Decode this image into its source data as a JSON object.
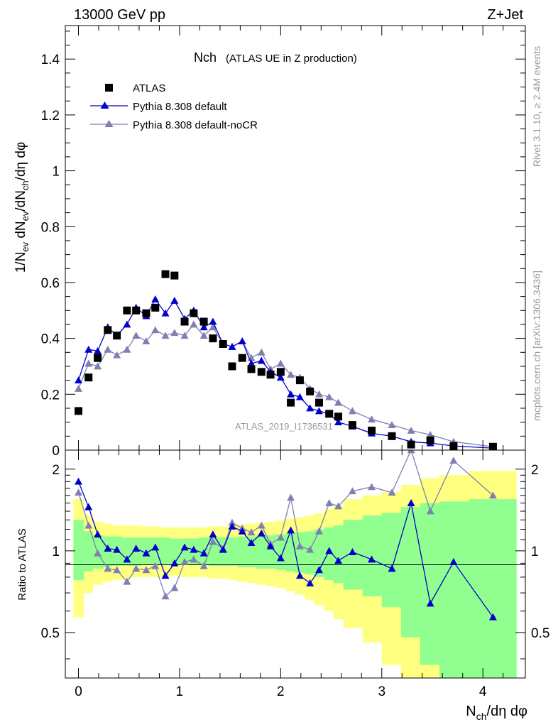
{
  "header": {
    "left": "13000 GeV pp",
    "right": "Z+Jet"
  },
  "side_labels": {
    "rivet": "Rivet 3.1.10, ≥ 2.4M events",
    "mcplots": "mcplots.cern.ch [arXiv:1306.3436]"
  },
  "colors": {
    "atlas": "#000000",
    "default": "#0000cc",
    "nocr": "#7f7fb2",
    "band_outer": "#ffff80",
    "band_inner": "#90ff90"
  },
  "chart_data": [
    {
      "type": "scatter",
      "title": "Nch",
      "subtitle": "(ATLAS UE in Z production)",
      "watermark": "ATLAS_2019_I1736531",
      "ylabel": "1/N_ev dN_ev/dN_ch/dη dφ",
      "xlabel": "N_ch/dη dφ",
      "xlim": [
        -0.13,
        4.42
      ],
      "ylim": [
        0,
        1.52
      ],
      "yticks": [
        "0",
        "0.2",
        "0.4",
        "0.6",
        "0.8",
        "1",
        "1.2",
        "1.4"
      ],
      "legend_position": "top-left",
      "series": [
        {
          "name": "ATLAS",
          "marker": "square",
          "x": [
            0.0,
            0.1,
            0.19,
            0.29,
            0.38,
            0.48,
            0.57,
            0.67,
            0.76,
            0.86,
            0.95,
            1.05,
            1.14,
            1.24,
            1.33,
            1.43,
            1.52,
            1.62,
            1.71,
            1.81,
            1.9,
            2.0,
            2.1,
            2.19,
            2.29,
            2.38,
            2.48,
            2.57,
            2.71,
            2.9,
            3.1,
            3.29,
            3.48,
            3.71,
            4.1
          ],
          "values": [
            0.14,
            0.26,
            0.33,
            0.43,
            0.41,
            0.5,
            0.5,
            0.49,
            0.51,
            0.63,
            0.625,
            0.46,
            0.49,
            0.46,
            0.4,
            0.38,
            0.3,
            0.33,
            0.29,
            0.28,
            0.27,
            0.28,
            0.17,
            0.25,
            0.21,
            0.17,
            0.13,
            0.12,
            0.09,
            0.07,
            0.05,
            0.02,
            0.035,
            0.015,
            0.012
          ]
        },
        {
          "name": "Pythia 8.308 default",
          "marker": "triangle",
          "x": [
            0.0,
            0.1,
            0.19,
            0.29,
            0.38,
            0.48,
            0.57,
            0.67,
            0.76,
            0.86,
            0.95,
            1.05,
            1.14,
            1.24,
            1.33,
            1.43,
            1.52,
            1.62,
            1.71,
            1.81,
            1.9,
            2.0,
            2.1,
            2.19,
            2.29,
            2.38,
            2.48,
            2.57,
            2.71,
            2.9,
            3.1,
            3.29,
            3.48,
            3.71,
            4.1
          ],
          "values": [
            0.25,
            0.36,
            0.355,
            0.44,
            0.41,
            0.45,
            0.51,
            0.48,
            0.54,
            0.49,
            0.535,
            0.47,
            0.5,
            0.44,
            0.46,
            0.38,
            0.37,
            0.39,
            0.31,
            0.32,
            0.28,
            0.26,
            0.2,
            0.19,
            0.15,
            0.14,
            0.13,
            0.1,
            0.085,
            0.06,
            0.05,
            0.03,
            0.025,
            0.015,
            0.007
          ]
        },
        {
          "name": "Pythia 8.308 default-noCR",
          "marker": "triangle",
          "x": [
            0.0,
            0.1,
            0.19,
            0.29,
            0.38,
            0.48,
            0.57,
            0.67,
            0.76,
            0.86,
            0.95,
            1.05,
            1.14,
            1.24,
            1.33,
            1.43,
            1.52,
            1.62,
            1.71,
            1.81,
            1.9,
            2.0,
            2.1,
            2.19,
            2.29,
            2.38,
            2.48,
            2.57,
            2.71,
            2.9,
            3.1,
            3.29,
            3.48,
            3.71,
            4.1
          ],
          "values": [
            0.22,
            0.31,
            0.3,
            0.36,
            0.34,
            0.36,
            0.41,
            0.39,
            0.43,
            0.41,
            0.42,
            0.41,
            0.45,
            0.41,
            0.44,
            0.38,
            0.37,
            0.39,
            0.33,
            0.35,
            0.29,
            0.31,
            0.27,
            0.26,
            0.22,
            0.2,
            0.19,
            0.17,
            0.14,
            0.11,
            0.09,
            0.07,
            0.055,
            0.03,
            0.012
          ]
        }
      ]
    },
    {
      "type": "line",
      "ylabel": "Ratio to ATLAS",
      "ylim": [
        0.34,
        2.35
      ],
      "yticks": [
        "0.5",
        "1",
        "2"
      ],
      "xticks": [
        "0",
        "1",
        "2",
        "3",
        "4"
      ],
      "bands": {
        "edges": [
          -0.05,
          0.05,
          0.14,
          0.24,
          0.33,
          0.43,
          0.52,
          0.62,
          0.71,
          0.81,
          0.9,
          1.0,
          1.1,
          1.19,
          1.29,
          1.38,
          1.48,
          1.57,
          1.67,
          1.76,
          1.86,
          1.95,
          2.05,
          2.14,
          2.24,
          2.33,
          2.43,
          2.52,
          2.62,
          2.81,
          3.0,
          3.19,
          3.38,
          3.57,
          3.86,
          4.33
        ],
        "outer_hi": [
          1.55,
          1.36,
          1.28,
          1.26,
          1.24,
          1.24,
          1.24,
          1.23,
          1.23,
          1.22,
          1.22,
          1.22,
          1.22,
          1.22,
          1.23,
          1.23,
          1.24,
          1.25,
          1.26,
          1.27,
          1.28,
          1.29,
          1.31,
          1.33,
          1.35,
          1.37,
          1.42,
          1.47,
          1.55,
          1.6,
          1.65,
          1.75,
          1.85,
          1.9,
          1.97
        ],
        "outer_lo": [
          0.57,
          0.7,
          0.75,
          0.77,
          0.78,
          0.79,
          0.8,
          0.8,
          0.8,
          0.8,
          0.81,
          0.8,
          0.8,
          0.8,
          0.79,
          0.79,
          0.78,
          0.77,
          0.76,
          0.75,
          0.74,
          0.73,
          0.71,
          0.69,
          0.66,
          0.63,
          0.6,
          0.56,
          0.52,
          0.46,
          0.38,
          0.34,
          0.34,
          0.34,
          0.34
        ],
        "inner_hi": [
          1.3,
          1.18,
          1.14,
          1.13,
          1.13,
          1.12,
          1.12,
          1.12,
          1.12,
          1.12,
          1.11,
          1.11,
          1.11,
          1.12,
          1.12,
          1.12,
          1.12,
          1.13,
          1.13,
          1.14,
          1.14,
          1.15,
          1.16,
          1.17,
          1.18,
          1.2,
          1.22,
          1.24,
          1.3,
          1.35,
          1.38,
          1.45,
          1.5,
          1.52,
          1.55
        ],
        "inner_lo": [
          0.78,
          0.84,
          0.86,
          0.87,
          0.88,
          0.88,
          0.88,
          0.89,
          0.89,
          0.89,
          0.89,
          0.89,
          0.89,
          0.89,
          0.88,
          0.88,
          0.88,
          0.87,
          0.87,
          0.86,
          0.86,
          0.85,
          0.84,
          0.83,
          0.82,
          0.8,
          0.78,
          0.76,
          0.72,
          0.68,
          0.62,
          0.48,
          0.38,
          0.34,
          0.34
        ]
      },
      "series": [
        {
          "name": "Pythia 8.308 default",
          "x": [
            0.0,
            0.1,
            0.19,
            0.29,
            0.38,
            0.48,
            0.57,
            0.67,
            0.76,
            0.86,
            0.95,
            1.05,
            1.14,
            1.24,
            1.33,
            1.43,
            1.52,
            1.62,
            1.71,
            1.81,
            1.9,
            2.0,
            2.1,
            2.19,
            2.29,
            2.38,
            2.48,
            2.57,
            2.71,
            2.9,
            3.1,
            3.29,
            3.48,
            3.71,
            4.1
          ],
          "values": [
            1.8,
            1.45,
            1.15,
            1.02,
            1.01,
            0.93,
            1.02,
            0.98,
            1.03,
            0.81,
            0.9,
            1.03,
            1.01,
            0.98,
            1.15,
            1.01,
            1.23,
            1.18,
            1.07,
            1.16,
            1.04,
            0.94,
            1.19,
            0.81,
            0.76,
            0.85,
            1.0,
            0.92,
            0.99,
            0.93,
            0.86,
            1.5,
            0.64,
            0.91,
            0.57
          ]
        },
        {
          "name": "Pythia 8.308 default-noCR",
          "x": [
            0.0,
            0.1,
            0.19,
            0.29,
            0.38,
            0.48,
            0.57,
            0.67,
            0.76,
            0.86,
            0.95,
            1.05,
            1.14,
            1.24,
            1.33,
            1.43,
            1.52,
            1.62,
            1.71,
            1.81,
            1.9,
            2.0,
            2.1,
            2.19,
            2.29,
            2.38,
            2.48,
            2.57,
            2.71,
            2.9,
            3.1,
            3.29,
            3.48,
            3.71,
            4.1
          ],
          "values": [
            1.64,
            1.24,
            0.98,
            0.86,
            0.85,
            0.77,
            0.86,
            0.85,
            0.88,
            0.68,
            0.73,
            0.91,
            0.93,
            0.88,
            1.08,
            1.02,
            1.27,
            1.21,
            1.17,
            1.24,
            1.06,
            1.12,
            1.57,
            1.04,
            1.01,
            1.18,
            1.5,
            1.46,
            1.66,
            1.72,
            1.64,
            2.35,
            1.4,
            2.15,
            1.6
          ]
        }
      ]
    }
  ]
}
